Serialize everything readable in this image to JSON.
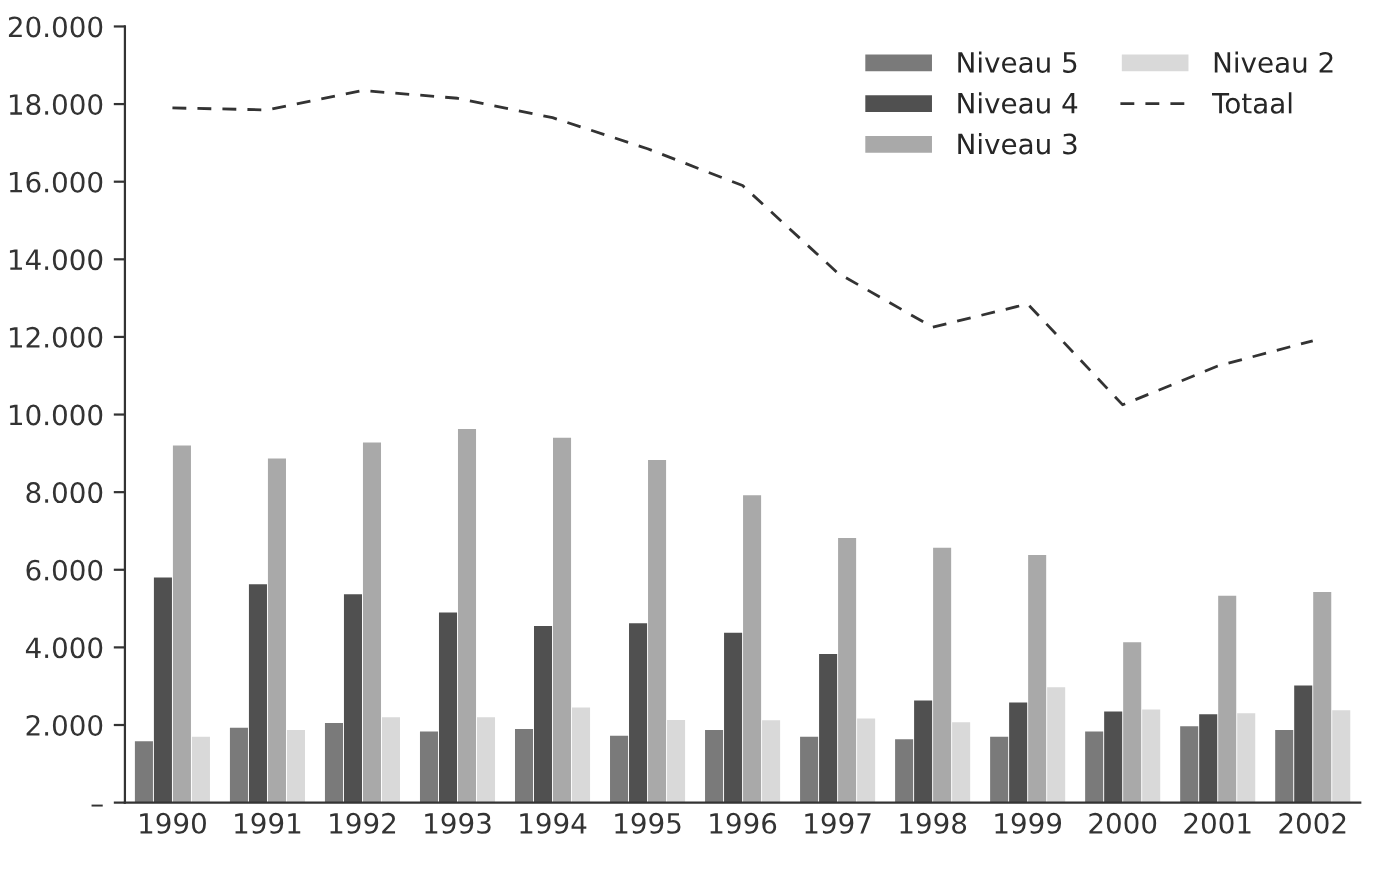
{
  "chart_data": {
    "type": "bar",
    "categories": [
      "1990",
      "1991",
      "1992",
      "1993",
      "1994",
      "1995",
      "1996",
      "1997",
      "1998",
      "1999",
      "2000",
      "2001",
      "2002"
    ],
    "series": [
      {
        "name": "Niveau 5",
        "color": "#7a7a7a",
        "values": [
          1580,
          1930,
          2050,
          1830,
          1900,
          1720,
          1870,
          1700,
          1630,
          1700,
          1830,
          1970,
          1870
        ]
      },
      {
        "name": "Niveau 4",
        "color": "#505050",
        "values": [
          5800,
          5630,
          5370,
          4900,
          4550,
          4620,
          4380,
          3830,
          2630,
          2580,
          2350,
          2280,
          3020
        ]
      },
      {
        "name": "Niveau 3",
        "color": "#a9a9a9",
        "values": [
          9200,
          8870,
          9280,
          9630,
          9400,
          8830,
          7920,
          6820,
          6570,
          6380,
          4130,
          5330,
          5430
        ]
      },
      {
        "name": "Niveau 2",
        "color": "#d9d9d9",
        "values": [
          1700,
          1870,
          2200,
          2200,
          2450,
          2130,
          2120,
          2170,
          2070,
          2970,
          2400,
          2300,
          2380
        ]
      },
      {
        "name": "Totaal",
        "type": "line",
        "line_style": "dashed",
        "color": "#333333",
        "values": [
          17900,
          17850,
          18350,
          18150,
          17650,
          16850,
          15900,
          13650,
          12250,
          12850,
          10250,
          11250,
          11900
        ]
      }
    ],
    "ylim": [
      0,
      20000
    ],
    "yticks": [
      {
        "value": 0,
        "label": "–"
      },
      {
        "value": 2000,
        "label": "2.000"
      },
      {
        "value": 4000,
        "label": "4.000"
      },
      {
        "value": 6000,
        "label": "6.000"
      },
      {
        "value": 8000,
        "label": "8.000"
      },
      {
        "value": 10000,
        "label": "10.000"
      },
      {
        "value": 12000,
        "label": "12.000"
      },
      {
        "value": 14000,
        "label": "14.000"
      },
      {
        "value": 16000,
        "label": "16.000"
      },
      {
        "value": 18000,
        "label": "18.000"
      },
      {
        "value": 20000,
        "label": "20.000"
      }
    ],
    "legend": "top right",
    "grid": false
  }
}
